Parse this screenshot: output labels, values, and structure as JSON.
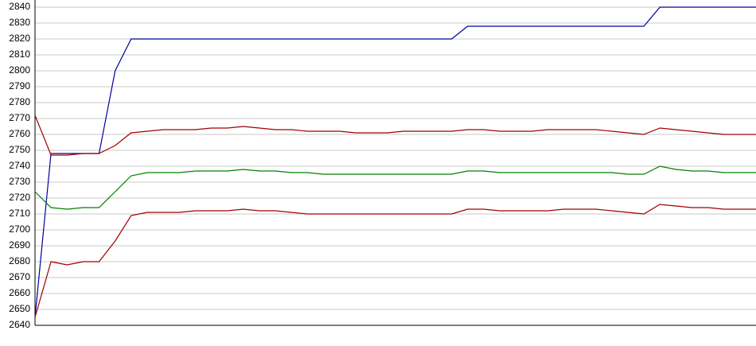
{
  "chart_data": {
    "type": "line",
    "categories": [
      null,
      null,
      null,
      null,
      null,
      null,
      null,
      null,
      null,
      null,
      null,
      null,
      null,
      null,
      null,
      null,
      null,
      null,
      null,
      null,
      null,
      null,
      null,
      null,
      null,
      null,
      null,
      null,
      null,
      null,
      null,
      null,
      null,
      null,
      null,
      null,
      null,
      null,
      null,
      null,
      null,
      null,
      null,
      null,
      null,
      null
    ],
    "series": [
      {
        "color": "#0000a0",
        "values": [
          2645,
          2748,
          2748,
          2748,
          2748,
          2800,
          2820,
          2820,
          2820,
          2820,
          2820,
          2820,
          2820,
          2820,
          2820,
          2820,
          2820,
          2820,
          2820,
          2820,
          2820,
          2820,
          2820,
          2820,
          2820,
          2820,
          2820,
          2828,
          2828,
          2828,
          2828,
          2828,
          2828,
          2828,
          2828,
          2828,
          2828,
          2828,
          2828,
          2840,
          2840,
          2840,
          2840,
          2840,
          2840,
          2840
        ]
      },
      {
        "color": "#a00000",
        "values": [
          2772,
          2747,
          2747,
          2748,
          2748,
          2753,
          2761,
          2762,
          2763,
          2763,
          2763,
          2764,
          2764,
          2765,
          2764,
          2763,
          2763,
          2762,
          2762,
          2762,
          2761,
          2761,
          2761,
          2762,
          2762,
          2762,
          2762,
          2763,
          2763,
          2762,
          2762,
          2762,
          2763,
          2763,
          2763,
          2763,
          2762,
          2761,
          2760,
          2764,
          2763,
          2762,
          2761,
          2760,
          2760,
          2760
        ]
      },
      {
        "color": "#008000",
        "values": [
          2724,
          2714,
          2713,
          2714,
          2714,
          2724,
          2734,
          2736,
          2736,
          2736,
          2737,
          2737,
          2737,
          2738,
          2737,
          2737,
          2736,
          2736,
          2735,
          2735,
          2735,
          2735,
          2735,
          2735,
          2735,
          2735,
          2735,
          2737,
          2737,
          2736,
          2736,
          2736,
          2736,
          2736,
          2736,
          2736,
          2736,
          2735,
          2735,
          2740,
          2738,
          2737,
          2737,
          2736,
          2736,
          2736
        ]
      },
      {
        "color": "#a00000",
        "values": [
          2645,
          2680,
          2678,
          2680,
          2680,
          2693,
          2709,
          2711,
          2711,
          2711,
          2712,
          2712,
          2712,
          2713,
          2712,
          2712,
          2711,
          2710,
          2710,
          2710,
          2710,
          2710,
          2710,
          2710,
          2710,
          2710,
          2710,
          2713,
          2713,
          2712,
          2712,
          2712,
          2712,
          2713,
          2713,
          2713,
          2712,
          2711,
          2710,
          2716,
          2715,
          2714,
          2714,
          2713,
          2713,
          2713
        ]
      }
    ],
    "ylim": [
      2640,
      2840
    ],
    "yticks": [
      2640,
      2650,
      2660,
      2670,
      2680,
      2690,
      2700,
      2710,
      2720,
      2730,
      2740,
      2750,
      2760,
      2770,
      2780,
      2790,
      2800,
      2810,
      2820,
      2830,
      2840
    ],
    "grid": true
  }
}
